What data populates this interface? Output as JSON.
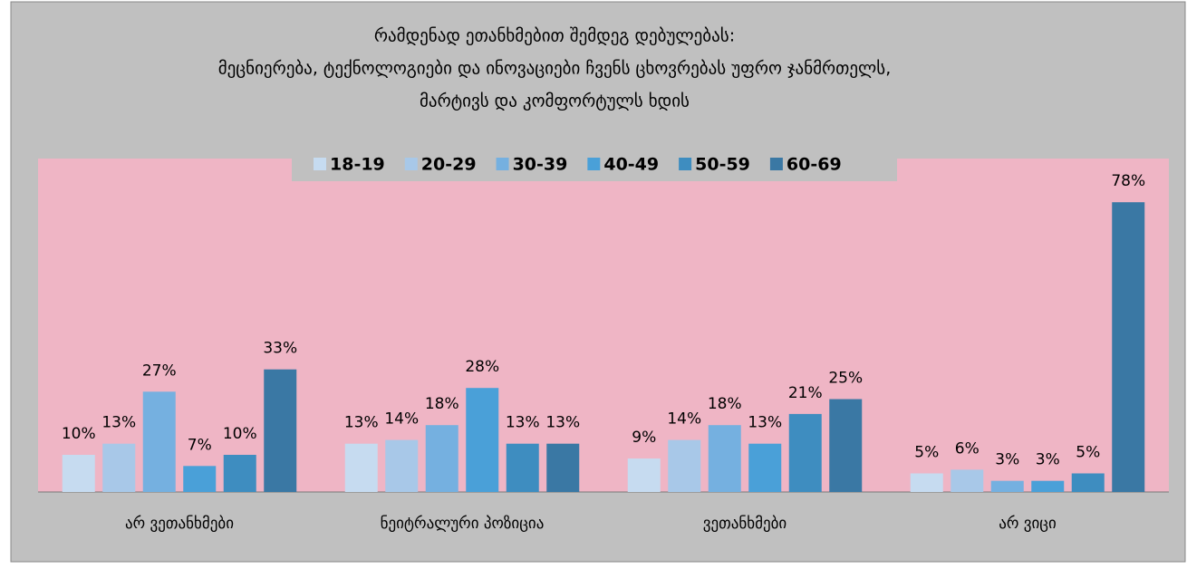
{
  "chart_data": {
    "type": "bar",
    "title": [
      "რამდენად ეთანხმებით შემდეგ დებულებას:",
      "მეცნიერება, ტექნოლოგიები და ინოვაციები ჩვენს ცხოვრებას უფრო ჯანმრთელს,",
      "მარტივს და კომფორტულს ხდის"
    ],
    "categories": [
      "არ ვეთანხმები",
      "ნეიტრალური პოზიცია",
      "ვეთანხმები",
      "არ ვიცი"
    ],
    "series": [
      {
        "name": "18-19",
        "color": "#c6dbf0",
        "values": [
          10,
          13,
          9,
          5
        ],
        "value_labels": [
          "10%",
          "13%",
          "9%",
          "5%"
        ]
      },
      {
        "name": "20-29",
        "color": "#a8c8e8",
        "values": [
          13,
          14,
          14,
          6
        ],
        "value_labels": [
          "13%",
          "14%",
          "14%",
          "6%"
        ]
      },
      {
        "name": "30-39",
        "color": "#75b0e0",
        "values": [
          27,
          18,
          18,
          3
        ],
        "value_labels": [
          "27%",
          "18%",
          "18%",
          "3%"
        ]
      },
      {
        "name": "40-49",
        "color": "#4aa0d8",
        "values": [
          7,
          28,
          13,
          3
        ],
        "value_labels": [
          "7%",
          "28%",
          "13%",
          "3%"
        ]
      },
      {
        "name": "50-59",
        "color": "#3e8dc0",
        "values": [
          10,
          13,
          21,
          5
        ],
        "value_labels": [
          "10%",
          "13%",
          "21%",
          "5%"
        ]
      },
      {
        "name": "60-69",
        "color": "#3a78a4",
        "values": [
          33,
          13,
          25,
          78
        ],
        "value_labels": [
          "33%",
          "13%",
          "25%",
          "78%"
        ]
      }
    ],
    "legend": "top"
  }
}
